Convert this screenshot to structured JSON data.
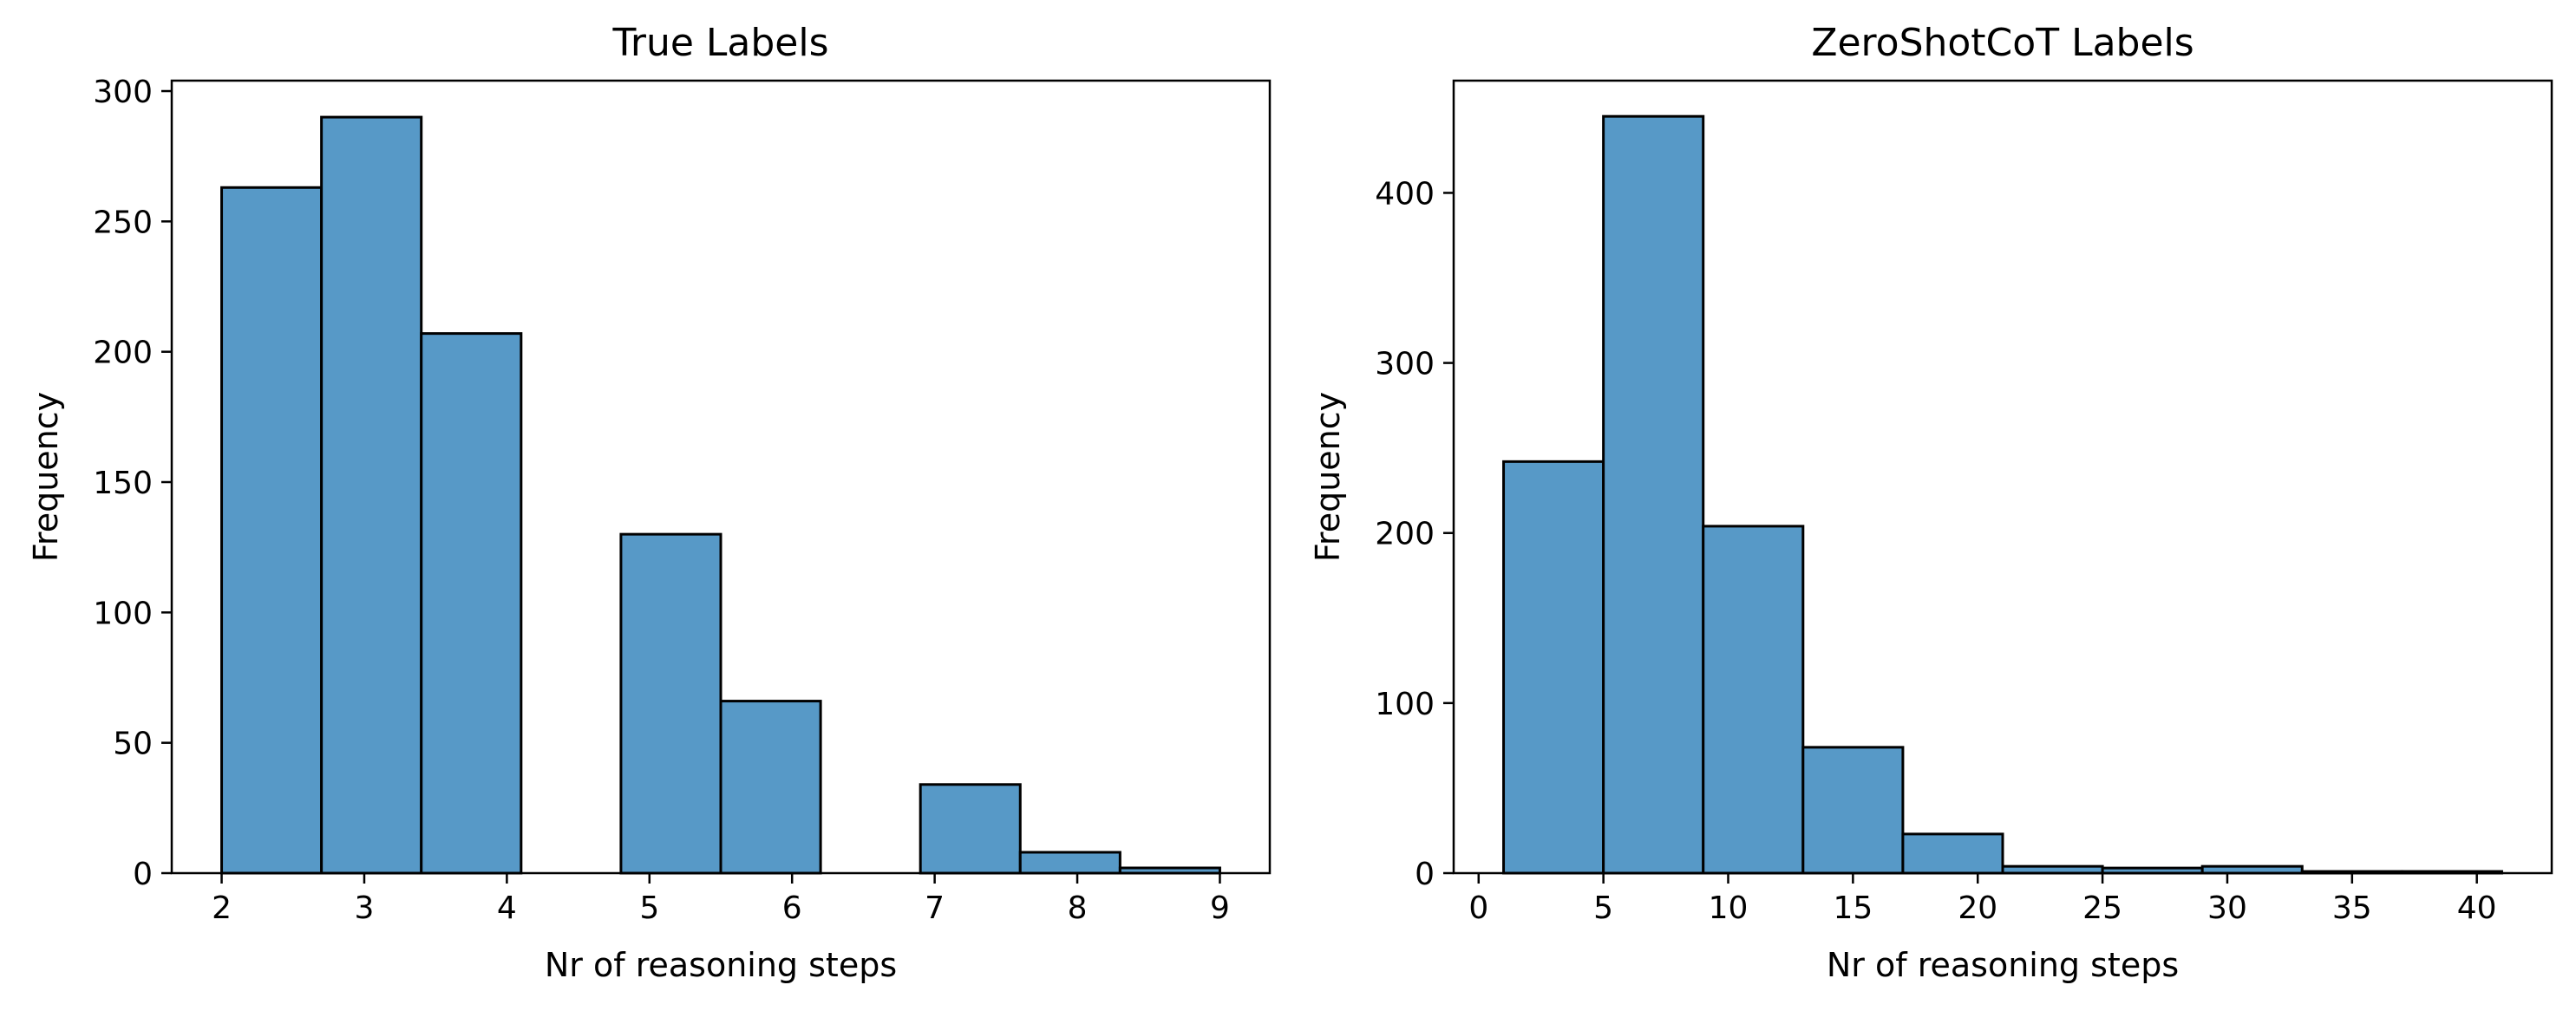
{
  "chart_data": [
    {
      "type": "bar",
      "title": "True Labels",
      "xlabel": "Nr of reasoning steps",
      "ylabel": "Frequency",
      "xlim": [
        1.65,
        9.35
      ],
      "ylim": [
        0,
        304
      ],
      "xticks": [
        2,
        3,
        4,
        5,
        6,
        7,
        8,
        9
      ],
      "yticks": [
        0,
        50,
        100,
        150,
        200,
        250,
        300
      ],
      "bin_edges": [
        2.0,
        2.7,
        3.4,
        4.1,
        4.8,
        5.5,
        6.2,
        6.9,
        7.6,
        8.3,
        9.0
      ],
      "values": [
        263,
        290,
        207,
        0,
        130,
        66,
        0,
        34,
        8,
        2
      ],
      "bar_color": "#5799c7",
      "edge_color": "#000000",
      "grid": false
    },
    {
      "type": "bar",
      "title": "ZeroShotCoT Labels",
      "xlabel": "Nr of reasoning steps",
      "ylabel": "Frequency",
      "xlim": [
        -1.0,
        43.0
      ],
      "ylim": [
        0,
        466
      ],
      "xticks": [
        0,
        5,
        10,
        15,
        20,
        25,
        30,
        35,
        40
      ],
      "yticks": [
        0,
        100,
        200,
        300,
        400
      ],
      "bin_edges": [
        1,
        5,
        9,
        13,
        17,
        21,
        25,
        29,
        33,
        37,
        41
      ],
      "values": [
        242,
        445,
        204,
        74,
        23,
        4,
        3,
        4,
        1,
        1
      ],
      "bar_color": "#5799c7",
      "edge_color": "#000000",
      "grid": false
    }
  ]
}
